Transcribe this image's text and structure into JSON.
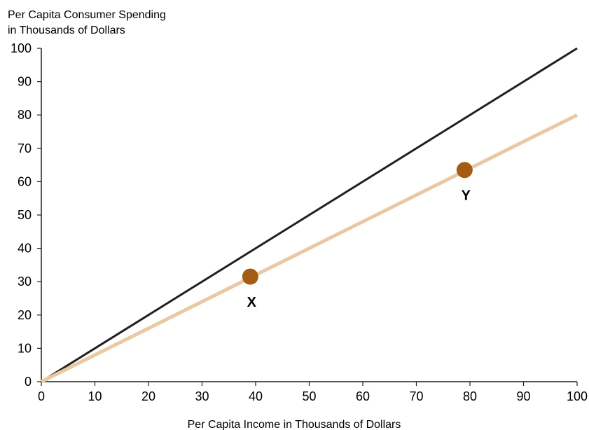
{
  "chart_data": {
    "type": "line",
    "ylabel_lines": [
      "Per Capita Consumer Spending",
      "in Thousands of Dollars"
    ],
    "xlabel": "Per Capita Income in Thousands of Dollars",
    "xlim": [
      0,
      100
    ],
    "ylim": [
      0,
      100
    ],
    "xticks": [
      "0",
      "10",
      "20",
      "30",
      "40",
      "50",
      "60",
      "70",
      "80",
      "90",
      "100"
    ],
    "yticks": [
      "0",
      "10",
      "20",
      "30",
      "40",
      "50",
      "60",
      "70",
      "80",
      "90",
      "100"
    ],
    "grid": false,
    "series": [
      {
        "x": [
          0,
          100
        ],
        "y": [
          0,
          100
        ],
        "color": "#231f20"
      },
      {
        "x": [
          0,
          100
        ],
        "y": [
          0,
          80
        ],
        "color": "#e8c9a1"
      }
    ],
    "points": [
      {
        "label": "X",
        "x": 39,
        "y": 31.5,
        "color": "#a45c12"
      },
      {
        "label": "Y",
        "x": 79,
        "y": 63.5,
        "color": "#a45c12"
      }
    ]
  }
}
